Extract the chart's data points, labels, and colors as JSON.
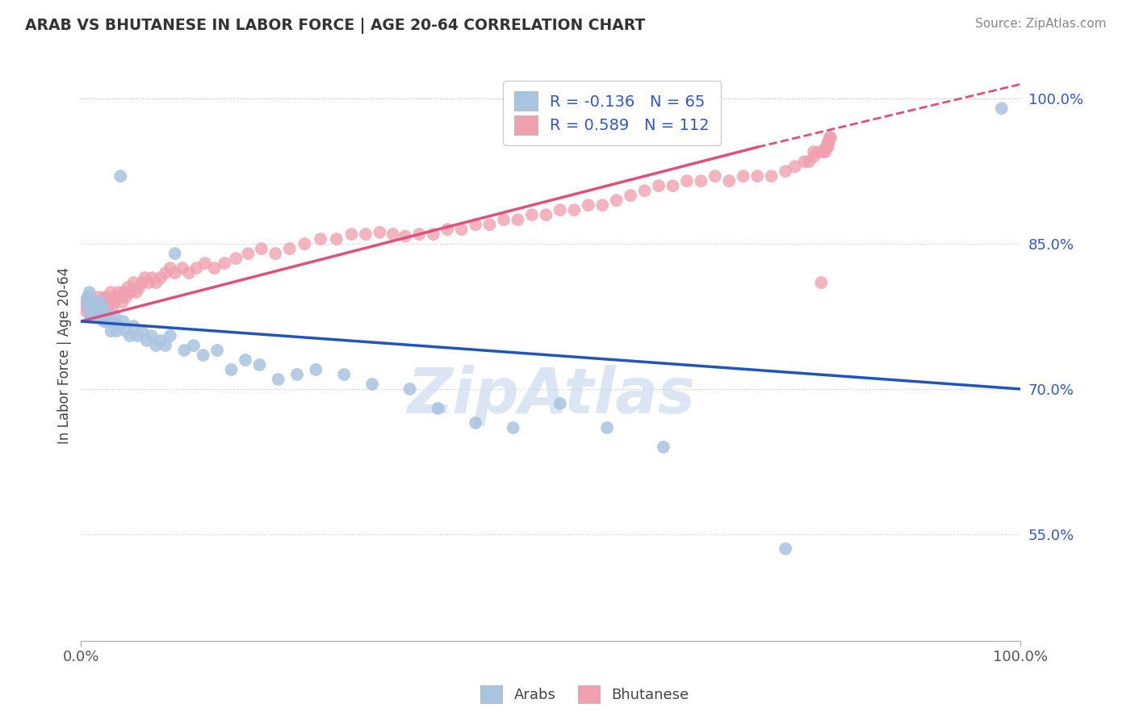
{
  "title": "ARAB VS BHUTANESE IN LABOR FORCE | AGE 20-64 CORRELATION CHART",
  "source_text": "Source: ZipAtlas.com",
  "ylabel": "In Labor Force | Age 20-64",
  "xlim": [
    0.0,
    1.0
  ],
  "ylim": [
    0.44,
    1.03
  ],
  "yticks": [
    0.55,
    0.7,
    0.85,
    1.0
  ],
  "ytick_labels": [
    "55.0%",
    "70.0%",
    "85.0%",
    "100.0%"
  ],
  "xtick_labels": [
    "0.0%",
    "100.0%"
  ],
  "xticks": [
    0.0,
    1.0
  ],
  "arab_R": -0.136,
  "arab_N": 65,
  "bhutanese_R": 0.589,
  "bhutanese_N": 112,
  "arab_color": "#a8c4e0",
  "bhutanese_color": "#f0a0b0",
  "arab_line_color": "#2255bb",
  "bhutanese_line_color": "#e0507a",
  "legend_text_color": "#3355cc",
  "watermark_color": "#c8d8ee",
  "background_color": "#ffffff",
  "grid_color": "#cccccc",
  "arab_line_x0": 0.0,
  "arab_line_y0": 0.77,
  "arab_line_x1": 1.0,
  "arab_line_y1": 0.7,
  "bhut_line_x0": 0.0,
  "bhut_line_y0": 0.77,
  "bhut_line_x1_solid": 0.72,
  "bhut_line_y1_solid": 0.95,
  "bhut_line_x1_dash": 1.0,
  "bhut_line_y1_dash": 1.015,
  "arab_x": [
    0.005,
    0.007,
    0.008,
    0.009,
    0.01,
    0.011,
    0.012,
    0.013,
    0.014,
    0.015,
    0.016,
    0.017,
    0.018,
    0.019,
    0.02,
    0.021,
    0.022,
    0.023,
    0.024,
    0.025,
    0.026,
    0.027,
    0.028,
    0.029,
    0.03,
    0.032,
    0.034,
    0.036,
    0.038,
    0.04,
    0.042,
    0.045,
    0.048,
    0.052,
    0.056,
    0.06,
    0.065,
    0.07,
    0.075,
    0.08,
    0.085,
    0.09,
    0.095,
    0.1,
    0.11,
    0.12,
    0.13,
    0.145,
    0.16,
    0.175,
    0.19,
    0.21,
    0.23,
    0.25,
    0.28,
    0.31,
    0.35,
    0.38,
    0.42,
    0.46,
    0.51,
    0.56,
    0.62,
    0.75,
    0.98
  ],
  "arab_y": [
    0.79,
    0.795,
    0.785,
    0.8,
    0.775,
    0.78,
    0.79,
    0.785,
    0.78,
    0.775,
    0.78,
    0.785,
    0.775,
    0.78,
    0.79,
    0.785,
    0.775,
    0.78,
    0.77,
    0.775,
    0.78,
    0.77,
    0.775,
    0.77,
    0.775,
    0.76,
    0.77,
    0.775,
    0.76,
    0.765,
    0.92,
    0.77,
    0.76,
    0.755,
    0.765,
    0.755,
    0.76,
    0.75,
    0.755,
    0.745,
    0.75,
    0.745,
    0.755,
    0.84,
    0.74,
    0.745,
    0.735,
    0.74,
    0.72,
    0.73,
    0.725,
    0.71,
    0.715,
    0.72,
    0.715,
    0.705,
    0.7,
    0.68,
    0.665,
    0.66,
    0.685,
    0.66,
    0.64,
    0.535,
    0.99
  ],
  "bhutanese_x": [
    0.004,
    0.005,
    0.006,
    0.007,
    0.008,
    0.009,
    0.01,
    0.011,
    0.012,
    0.013,
    0.014,
    0.015,
    0.016,
    0.017,
    0.018,
    0.019,
    0.02,
    0.021,
    0.022,
    0.023,
    0.024,
    0.025,
    0.026,
    0.027,
    0.028,
    0.029,
    0.03,
    0.032,
    0.034,
    0.036,
    0.038,
    0.04,
    0.042,
    0.044,
    0.046,
    0.048,
    0.05,
    0.053,
    0.056,
    0.059,
    0.062,
    0.065,
    0.068,
    0.072,
    0.076,
    0.08,
    0.085,
    0.09,
    0.095,
    0.1,
    0.108,
    0.115,
    0.123,
    0.132,
    0.142,
    0.153,
    0.165,
    0.178,
    0.192,
    0.207,
    0.222,
    0.238,
    0.255,
    0.272,
    0.288,
    0.303,
    0.318,
    0.332,
    0.345,
    0.36,
    0.375,
    0.39,
    0.405,
    0.42,
    0.435,
    0.45,
    0.465,
    0.48,
    0.495,
    0.51,
    0.525,
    0.54,
    0.555,
    0.57,
    0.585,
    0.6,
    0.615,
    0.63,
    0.645,
    0.66,
    0.675,
    0.69,
    0.705,
    0.72,
    0.735,
    0.75,
    0.76,
    0.77,
    0.775,
    0.78,
    0.78,
    0.785,
    0.788,
    0.79,
    0.792,
    0.793,
    0.794,
    0.795,
    0.795,
    0.796,
    0.797,
    0.798
  ],
  "bhutanese_y": [
    0.79,
    0.785,
    0.78,
    0.79,
    0.795,
    0.785,
    0.78,
    0.775,
    0.79,
    0.785,
    0.78,
    0.775,
    0.78,
    0.79,
    0.785,
    0.795,
    0.79,
    0.785,
    0.78,
    0.775,
    0.79,
    0.785,
    0.795,
    0.79,
    0.795,
    0.785,
    0.79,
    0.8,
    0.785,
    0.79,
    0.795,
    0.8,
    0.795,
    0.79,
    0.8,
    0.795,
    0.805,
    0.8,
    0.81,
    0.8,
    0.805,
    0.81,
    0.815,
    0.81,
    0.815,
    0.81,
    0.815,
    0.82,
    0.825,
    0.82,
    0.825,
    0.82,
    0.825,
    0.83,
    0.825,
    0.83,
    0.835,
    0.84,
    0.845,
    0.84,
    0.845,
    0.85,
    0.855,
    0.855,
    0.86,
    0.86,
    0.862,
    0.86,
    0.858,
    0.86,
    0.86,
    0.865,
    0.865,
    0.87,
    0.87,
    0.875,
    0.875,
    0.88,
    0.88,
    0.885,
    0.885,
    0.89,
    0.89,
    0.895,
    0.9,
    0.905,
    0.91,
    0.91,
    0.915,
    0.915,
    0.92,
    0.915,
    0.92,
    0.92,
    0.92,
    0.925,
    0.93,
    0.935,
    0.935,
    0.94,
    0.945,
    0.945,
    0.81,
    0.945,
    0.945,
    0.95,
    0.95,
    0.95,
    0.955,
    0.955,
    0.96,
    0.96
  ]
}
